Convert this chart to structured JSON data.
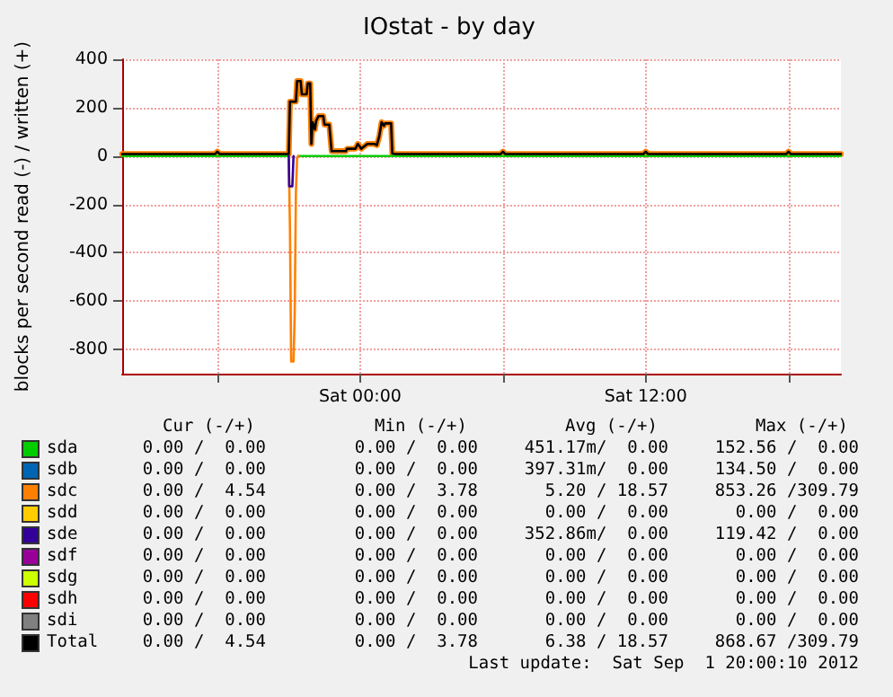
{
  "chart_data": {
    "type": "line",
    "title": "IOstat - by day",
    "ylabel": "blocks per second read (-) / written (+)",
    "xlim": [
      "2012-08-31T14:00",
      "2012-09-01T20:12"
    ],
    "ylim": [
      -900,
      400
    ],
    "xticks": [
      {
        "value": "2012-08-31T18:00",
        "label": null
      },
      {
        "value": "2012-09-01T00:00",
        "label": "Sat 00:00"
      },
      {
        "value": "2012-09-01T06:00",
        "label": null
      },
      {
        "value": "2012-09-01T12:00",
        "label": "Sat 12:00"
      },
      {
        "value": "2012-09-01T18:00",
        "label": null
      }
    ],
    "yticks": [
      -800,
      -600,
      -400,
      -200,
      0,
      200,
      400
    ],
    "grid": true,
    "legend": "bottom",
    "marker": "none",
    "line_style": "solid",
    "series": [
      {
        "name": "sda",
        "color": "#00cc00",
        "x": [
          "2012-08-31T14:00",
          "2012-08-31T21:00",
          "2012-08-31T21:12",
          "2012-08-31T21:24",
          "2012-09-01T20:12"
        ],
        "values": [
          0,
          0,
          null,
          0,
          0
        ]
      },
      {
        "name": "sdb",
        "color": "#0066b3"
      },
      {
        "name": "sdc",
        "color": "#ff8000",
        "x": [
          "2012-08-31T21:00",
          "2012-08-31T21:03",
          "2012-08-31T21:06",
          "2012-08-31T21:12",
          "2012-08-31T21:15",
          "2012-08-31T21:18",
          "2012-08-31T21:21",
          "2012-08-31T21:24"
        ],
        "values": [
          0,
          -300,
          -850,
          -850,
          -650,
          -150,
          -10,
          0
        ]
      },
      {
        "color": "#ff8000",
        "x": [
          "2012-08-31T14:00",
          "2012-08-31T17:54",
          "2012-08-31T18:00",
          "2012-08-31T18:06",
          "2012-08-31T21:00",
          "2012-08-31T21:03",
          "2012-08-31T21:18",
          "2012-08-31T21:21",
          "2012-08-31T21:30",
          "2012-08-31T21:33",
          "2012-08-31T21:45",
          "2012-08-31T21:48",
          "2012-08-31T21:54",
          "2012-08-31T21:57",
          "2012-08-31T22:00",
          "2012-08-31T22:06",
          "2012-08-31T22:09",
          "2012-08-31T22:15",
          "2012-08-31T22:27",
          "2012-08-31T22:30",
          "2012-08-31T22:42",
          "2012-08-31T22:48",
          "2012-08-31T23:24",
          "2012-08-31T23:27",
          "2012-08-31T23:48",
          "2012-08-31T23:54",
          "2012-09-01T00:03",
          "2012-09-01T00:18",
          "2012-09-01T00:36",
          "2012-09-01T00:42",
          "2012-09-01T00:48",
          "2012-09-01T00:54",
          "2012-09-01T01:00",
          "2012-09-01T01:03",
          "2012-09-01T01:18",
          "2012-09-01T01:21",
          "2012-09-01T01:30",
          "2012-09-01T05:54",
          "2012-09-01T06:00",
          "2012-09-01T06:06",
          "2012-09-01T11:54",
          "2012-09-01T12:00",
          "2012-09-01T12:06",
          "2012-09-01T17:54",
          "2012-09-01T18:00",
          "2012-09-01T18:06",
          "2012-09-01T20:12"
        ],
        "values": [
          8,
          8,
          18,
          8,
          8,
          225,
          225,
          310,
          310,
          255,
          255,
          300,
          300,
          50,
          140,
          110,
          145,
          165,
          165,
          130,
          130,
          20,
          20,
          30,
          30,
          50,
          30,
          50,
          50,
          45,
          80,
          140,
          125,
          135,
          135,
          10,
          8,
          8,
          18,
          8,
          8,
          18,
          8,
          8,
          18,
          8,
          8
        ]
      },
      {
        "name": "sdd",
        "color": "#ffcc00"
      },
      {
        "name": "sde",
        "color": "#330099",
        "x": [
          "2012-08-31T21:00",
          "2012-08-31T21:01",
          "2012-08-31T21:09",
          "2012-08-31T21:12"
        ],
        "values": [
          0,
          -125,
          -125,
          0
        ]
      },
      {
        "name": "sdf",
        "color": "#990099"
      },
      {
        "name": "sdg",
        "color": "#ccff00"
      },
      {
        "name": "sdh",
        "color": "#ff0000"
      },
      {
        "name": "sdi",
        "color": "#808080"
      },
      {
        "name": "Total",
        "color": "#000000",
        "x": [
          "2012-08-31T14:00",
          "2012-08-31T17:54",
          "2012-08-31T18:00",
          "2012-08-31T18:06",
          "2012-08-31T21:00",
          "2012-08-31T21:03",
          "2012-08-31T21:18",
          "2012-08-31T21:21",
          "2012-08-31T21:30",
          "2012-08-31T21:33",
          "2012-08-31T21:45",
          "2012-08-31T21:48",
          "2012-08-31T21:54",
          "2012-08-31T21:57",
          "2012-08-31T22:00",
          "2012-08-31T22:06",
          "2012-08-31T22:09",
          "2012-08-31T22:15",
          "2012-08-31T22:27",
          "2012-08-31T22:30",
          "2012-08-31T22:42",
          "2012-08-31T22:48",
          "2012-08-31T23:24",
          "2012-08-31T23:27",
          "2012-08-31T23:48",
          "2012-08-31T23:54",
          "2012-09-01T00:03",
          "2012-09-01T00:18",
          "2012-09-01T00:36",
          "2012-09-01T00:42",
          "2012-09-01T00:48",
          "2012-09-01T00:54",
          "2012-09-01T01:00",
          "2012-09-01T01:03",
          "2012-09-01T01:18",
          "2012-09-01T01:21",
          "2012-09-01T01:30",
          "2012-09-01T05:54",
          "2012-09-01T06:00",
          "2012-09-01T06:06",
          "2012-09-01T11:54",
          "2012-09-01T12:00",
          "2012-09-01T12:06",
          "2012-09-01T17:54",
          "2012-09-01T18:00",
          "2012-09-01T18:06",
          "2012-09-01T20:12"
        ],
        "values": [
          8,
          8,
          18,
          8,
          8,
          225,
          225,
          310,
          310,
          255,
          255,
          300,
          300,
          50,
          140,
          110,
          145,
          165,
          165,
          130,
          130,
          20,
          20,
          30,
          30,
          50,
          30,
          50,
          50,
          45,
          80,
          140,
          125,
          135,
          135,
          10,
          8,
          8,
          18,
          8,
          8,
          18,
          8,
          8,
          18,
          8,
          8
        ]
      }
    ],
    "annotations": [
      "Cur (-/+)",
      "Min (-/+)",
      "Avg (-/+)",
      "Max (-/+)",
      "0.00 /  0.00",
      "0.00 /  0.00",
      "451.17m/  0.00",
      "152.56 /  0.00",
      "0.00 /  0.00",
      "0.00 /  0.00",
      "397.31m/  0.00",
      "134.50 /  0.00",
      "0.00 /  4.54",
      "0.00 /  3.78",
      "5.20 / 18.57",
      "853.26 /309.79",
      "0.00 /  0.00",
      "0.00 /  0.00",
      "0.00 /  0.00",
      "0.00 /  0.00",
      "0.00 /  0.00",
      "0.00 /  0.00",
      "352.86m/  0.00",
      "119.42 /  0.00",
      "0.00 /  0.00",
      "0.00 /  0.00",
      "0.00 /  0.00",
      "0.00 /  0.00",
      "0.00 /  0.00",
      "0.00 /  0.00",
      "0.00 /  0.00",
      "0.00 /  0.00",
      "0.00 /  0.00",
      "0.00 /  0.00",
      "0.00 /  0.00",
      "0.00 /  0.00",
      "0.00 /  0.00",
      "0.00 /  0.00",
      "0.00 /  0.00",
      "0.00 /  0.00",
      "0.00 /  4.54",
      "0.00 /  3.78",
      "6.38 / 18.57",
      "868.67 /309.79",
      "Last update:  Sat Sep  1 20:00:10 2012"
    ]
  }
}
